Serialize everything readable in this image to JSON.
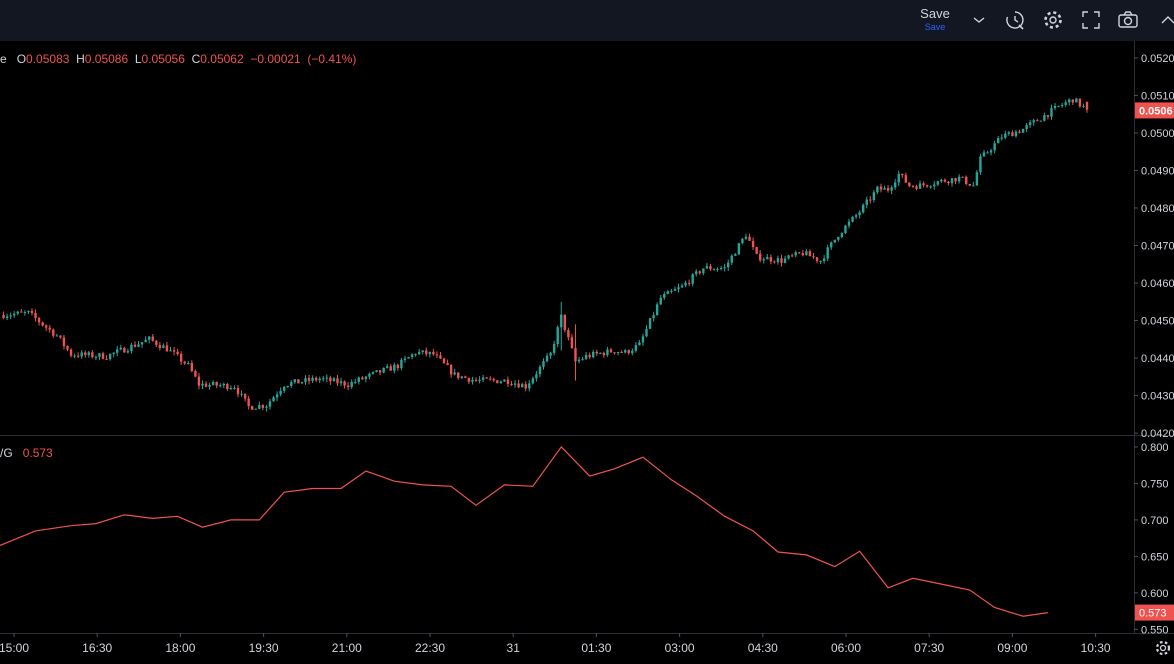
{
  "toolbar": {
    "save_label": "Save",
    "save_sublabel": "Save",
    "icons": [
      "chevron-down-icon",
      "replay-icon",
      "gear-icon",
      "fullscreen-icon",
      "camera-icon",
      "chevron-up-icon"
    ]
  },
  "legend": {
    "symbol_fragment": "e",
    "o_label": "O",
    "o_value": "0.05083",
    "h_label": "H",
    "h_value": "0.05086",
    "l_label": "L",
    "l_value": "0.05056",
    "c_label": "C",
    "c_value": "0.05062",
    "change": "−0.00021",
    "change_pct": "(−0.41%)"
  },
  "indicator_legend": {
    "name_fragment": "/G",
    "value": "0.573"
  },
  "colors": {
    "background": "#000000",
    "up": "#26a69a",
    "down": "#ef5350",
    "indicator_line": "#ef5350",
    "grid": "#1e222d",
    "axis_text": "#d1d4dc",
    "price_tag": "#ef5350"
  },
  "chart_data": [
    {
      "type": "candlestick",
      "price_axis_ticks": [
        "0.0520",
        "0.0510",
        "0.0506",
        "0.0500",
        "0.0490",
        "0.0480",
        "0.0470",
        "0.0460",
        "0.0450",
        "0.0440",
        "0.0430",
        "0.0420"
      ],
      "ylim": [
        0.04195,
        0.05245
      ],
      "current_price_label": "0.0506",
      "time_labels": [
        "15:00",
        "16:30",
        "18:00",
        "19:30",
        "21:00",
        "22:30",
        "31",
        "01:30",
        "03:00",
        "04:30",
        "06:00",
        "07:30",
        "09:00",
        "10:30"
      ],
      "close_path": [
        [
          0,
          0.04515
        ],
        [
          8,
          0.0452
        ],
        [
          16,
          0.0446
        ],
        [
          20,
          0.0441
        ],
        [
          30,
          0.04405
        ],
        [
          38,
          0.04435
        ],
        [
          42,
          0.0445
        ],
        [
          47,
          0.04425
        ],
        [
          53,
          0.0438
        ],
        [
          56,
          0.0433
        ],
        [
          66,
          0.04325
        ],
        [
          70,
          0.0427
        ],
        [
          75,
          0.04275
        ],
        [
          80,
          0.0433
        ],
        [
          90,
          0.04345
        ],
        [
          98,
          0.0433
        ],
        [
          106,
          0.0436
        ],
        [
          112,
          0.0438
        ],
        [
          117,
          0.04415
        ],
        [
          122,
          0.0441
        ],
        [
          128,
          0.04355
        ],
        [
          134,
          0.0434
        ],
        [
          143,
          0.0434
        ],
        [
          148,
          0.04325
        ],
        [
          155,
          0.0441
        ],
        [
          158,
          0.0451
        ],
        [
          162,
          0.0439
        ],
        [
          165,
          0.04405
        ],
        [
          173,
          0.0442
        ],
        [
          176,
          0.04415
        ],
        [
          180,
          0.04435
        ],
        [
          186,
          0.0456
        ],
        [
          192,
          0.0459
        ],
        [
          198,
          0.0464
        ],
        [
          204,
          0.0464
        ],
        [
          210,
          0.0473
        ],
        [
          213,
          0.0467
        ],
        [
          220,
          0.0466
        ],
        [
          226,
          0.0468
        ],
        [
          231,
          0.0466
        ],
        [
          236,
          0.0473
        ],
        [
          242,
          0.0479
        ],
        [
          247,
          0.0485
        ],
        [
          250,
          0.0485
        ],
        [
          253,
          0.0489
        ],
        [
          256,
          0.0486
        ],
        [
          259,
          0.0486
        ],
        [
          264,
          0.0487
        ],
        [
          270,
          0.0488
        ],
        [
          274,
          0.0486
        ],
        [
          276,
          0.0493
        ],
        [
          282,
          0.0499
        ],
        [
          288,
          0.0501
        ],
        [
          293,
          0.0504
        ],
        [
          298,
          0.0507
        ],
        [
          302,
          0.0509
        ],
        [
          306,
          0.05062
        ]
      ]
    },
    {
      "type": "line",
      "ylabel": "",
      "ylim": [
        0.545,
        0.815
      ],
      "y_ticks": [
        "0.800",
        "0.750",
        "0.700",
        "0.650",
        "0.600",
        "0.550"
      ],
      "current_value_label": "0.573",
      "points": [
        [
          0,
          0.665
        ],
        [
          10,
          0.685
        ],
        [
          20,
          0.692
        ],
        [
          27,
          0.695
        ],
        [
          35,
          0.707
        ],
        [
          43,
          0.702
        ],
        [
          50,
          0.705
        ],
        [
          57,
          0.69
        ],
        [
          65,
          0.7
        ],
        [
          73,
          0.7
        ],
        [
          80,
          0.738
        ],
        [
          88,
          0.743
        ],
        [
          96,
          0.743
        ],
        [
          103,
          0.767
        ],
        [
          111,
          0.753
        ],
        [
          119,
          0.748
        ],
        [
          127,
          0.746
        ],
        [
          134,
          0.72
        ],
        [
          142,
          0.748
        ],
        [
          150,
          0.746
        ],
        [
          158,
          0.8
        ],
        [
          166,
          0.76
        ],
        [
          173,
          0.77
        ],
        [
          181,
          0.786
        ],
        [
          189,
          0.755
        ],
        [
          196,
          0.733
        ],
        [
          204,
          0.705
        ],
        [
          212,
          0.685
        ],
        [
          219,
          0.656
        ],
        [
          227,
          0.652
        ],
        [
          235,
          0.636
        ],
        [
          242,
          0.657
        ],
        [
          250,
          0.607
        ],
        [
          257,
          0.62
        ],
        [
          265,
          0.612
        ],
        [
          273,
          0.604
        ],
        [
          280,
          0.58
        ],
        [
          288,
          0.568
        ],
        [
          295,
          0.573
        ]
      ]
    }
  ]
}
